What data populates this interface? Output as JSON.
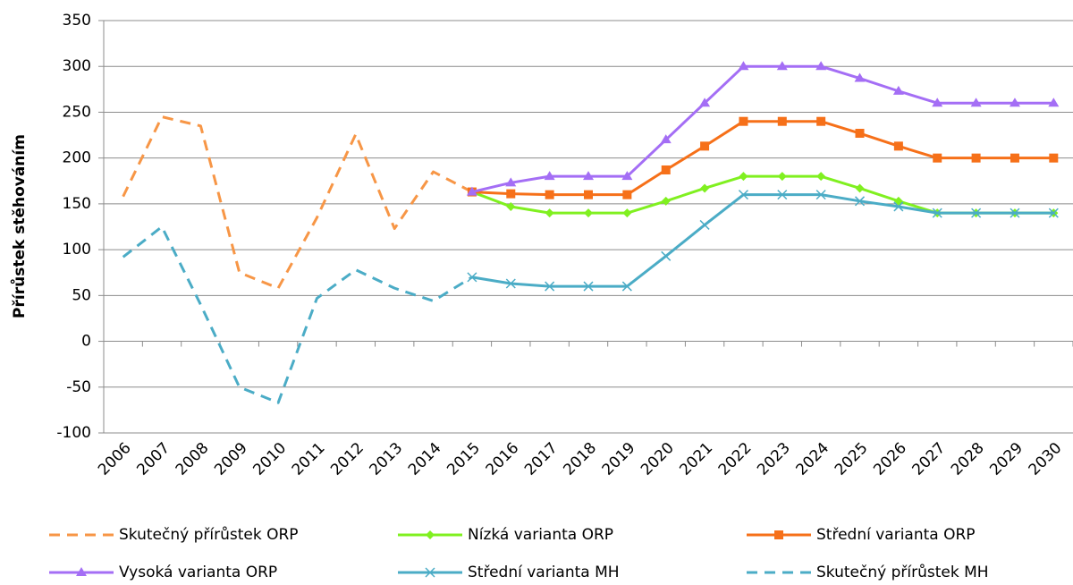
{
  "chart_data": {
    "type": "line",
    "y_label": "Přírůstek stěhováním",
    "categories": [
      "2006",
      "2007",
      "2008",
      "2009",
      "2010",
      "2011",
      "2012",
      "2013",
      "2014",
      "2015",
      "2016",
      "2017",
      "2018",
      "2019",
      "2020",
      "2021",
      "2022",
      "2023",
      "2024",
      "2025",
      "2026",
      "2027",
      "2028",
      "2029",
      "2030"
    ],
    "ylim": [
      -100,
      350
    ],
    "yticks": [
      -100,
      -50,
      0,
      50,
      100,
      150,
      200,
      250,
      300,
      350
    ],
    "grid": true,
    "series": [
      {
        "name": "Skutečný přírůstek ORP",
        "color": "#f79646",
        "dash": true,
        "marker": "none",
        "values": [
          158,
          245,
          235,
          75,
          58,
          135,
          226,
          123,
          185,
          163,
          null,
          null,
          null,
          null,
          null,
          null,
          null,
          null,
          null,
          null,
          null,
          null,
          null,
          null,
          null
        ]
      },
      {
        "name": "Nízká varianta ORP",
        "color": "#80f020",
        "dash": false,
        "marker": "diamond",
        "values": [
          null,
          null,
          null,
          null,
          null,
          null,
          null,
          null,
          null,
          163,
          147,
          140,
          140,
          140,
          153,
          167,
          180,
          180,
          180,
          167,
          153,
          140,
          140,
          140,
          140
        ]
      },
      {
        "name": "Střední varianta ORP",
        "color": "#f67019",
        "dash": false,
        "marker": "square",
        "values": [
          null,
          null,
          null,
          null,
          null,
          null,
          null,
          null,
          null,
          163,
          161,
          160,
          160,
          160,
          187,
          213,
          240,
          240,
          240,
          227,
          213,
          200,
          200,
          200,
          200
        ]
      },
      {
        "name": "Vysoká varianta ORP",
        "color": "#a46ef5",
        "dash": false,
        "marker": "triangle",
        "values": [
          null,
          null,
          null,
          null,
          null,
          null,
          null,
          null,
          null,
          163,
          173,
          180,
          180,
          180,
          220,
          260,
          300,
          300,
          300,
          287,
          273,
          260,
          260,
          260,
          260
        ]
      },
      {
        "name": "Střední varianta MH",
        "color": "#4bacc6",
        "dash": false,
        "marker": "x",
        "values": [
          null,
          null,
          null,
          null,
          null,
          null,
          null,
          null,
          null,
          70,
          63,
          60,
          60,
          60,
          93,
          127,
          160,
          160,
          160,
          153,
          147,
          140,
          140,
          140,
          140
        ]
      },
      {
        "name": "Skutečný přírůstek MH",
        "color": "#4bacc6",
        "dash": true,
        "marker": "none",
        "values": [
          92,
          125,
          40,
          -50,
          -67,
          47,
          78,
          58,
          44,
          70,
          null,
          null,
          null,
          null,
          null,
          null,
          null,
          null,
          null,
          null,
          null,
          null,
          null,
          null,
          null
        ]
      }
    ]
  }
}
